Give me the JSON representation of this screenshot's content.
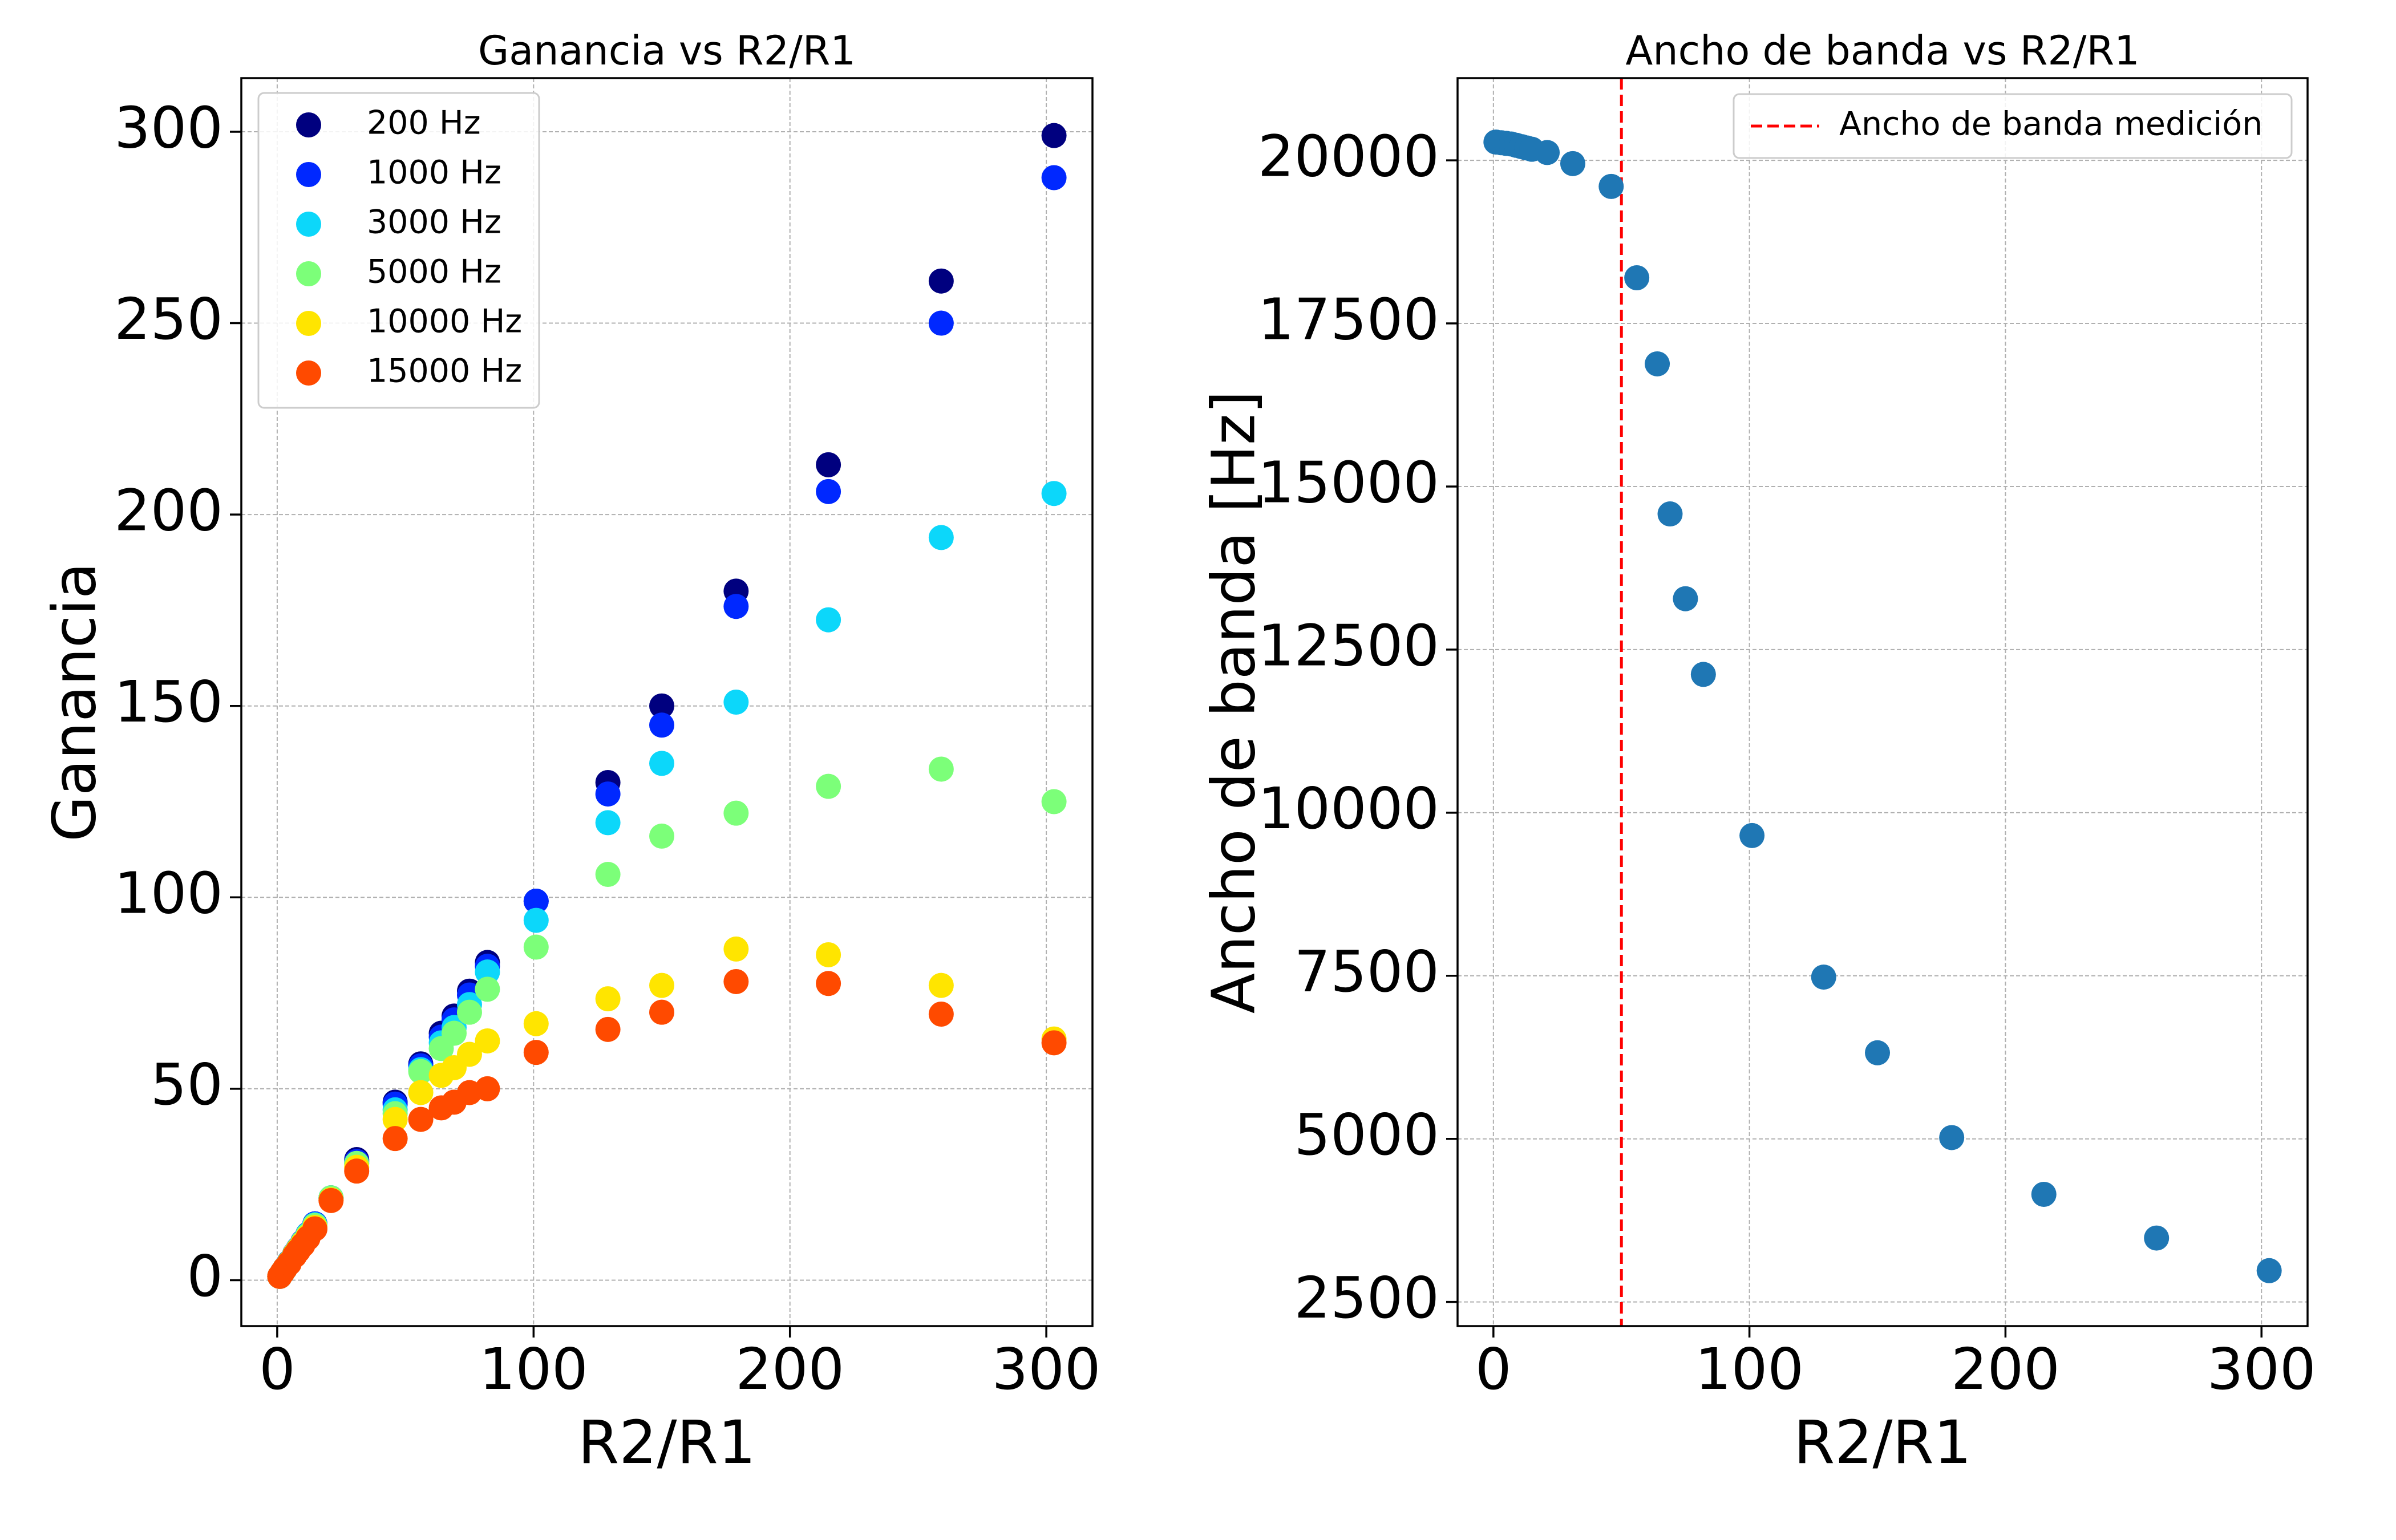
{
  "chart_data": [
    {
      "type": "scatter",
      "title": "Ganancia vs R2/R1",
      "xlabel": "R2/R1",
      "ylabel": "Ganancia",
      "xlim": [
        -14,
        318
      ],
      "ylim": [
        -12,
        314
      ],
      "xticks": [
        0,
        100,
        200,
        300
      ],
      "yticks": [
        0,
        50,
        100,
        150,
        200,
        250,
        300
      ],
      "xtick_labels": [
        "0",
        "100",
        "200",
        "300"
      ],
      "ytick_labels": [
        "0",
        "50",
        "100",
        "150",
        "200",
        "250",
        "300"
      ],
      "grid": true,
      "legend_position": "top-left",
      "x": [
        1,
        2,
        3,
        4.7,
        6.8,
        8.2,
        10,
        12,
        14.7,
        21,
        31,
        46,
        56,
        64,
        69,
        75,
        82,
        101,
        129,
        150,
        179,
        215,
        259,
        303
      ],
      "series": [
        {
          "name": "200 Hz",
          "color": "#00007f",
          "values": [
            1,
            2,
            3,
            4.7,
            6.8,
            8.2,
            10,
            12,
            14.7,
            21.5,
            31.5,
            46.5,
            56.5,
            64.5,
            69,
            75.5,
            83,
            99,
            130,
            150,
            180,
            213,
            261,
            299
          ]
        },
        {
          "name": "1000 Hz",
          "color": "#0028ff",
          "values": [
            1,
            2,
            3,
            4.7,
            6.8,
            8.2,
            10,
            12,
            14.7,
            21.5,
            31,
            46,
            56,
            63.5,
            68,
            74.5,
            82,
            99,
            127,
            145,
            176,
            206,
            250,
            288
          ]
        },
        {
          "name": "3000 Hz",
          "color": "#0cd7fa",
          "values": [
            1,
            2,
            3,
            4.6,
            6.7,
            8.1,
            9.9,
            11.9,
            14.5,
            21.5,
            30.5,
            44.5,
            55,
            62,
            66,
            72,
            80.5,
            94,
            119.5,
            135,
            151,
            172.5,
            194,
            205.5
          ]
        },
        {
          "name": "5000 Hz",
          "color": "#7cff79",
          "values": [
            1,
            2,
            3,
            4.6,
            6.7,
            8.1,
            9.8,
            11.7,
            14.3,
            21.5,
            30.5,
            43.5,
            54.5,
            60.5,
            64.5,
            70,
            76,
            87,
            106,
            116,
            122,
            129,
            133.5,
            125
          ]
        },
        {
          "name": "10000 Hz",
          "color": "#ffe500",
          "values": [
            1,
            2,
            3,
            4.5,
            6.6,
            7.9,
            9.5,
            11.3,
            13.8,
            21,
            29.5,
            42,
            49,
            53.5,
            55.5,
            59,
            62.5,
            67,
            73.5,
            77,
            86.5,
            85,
            77,
            63
          ]
        },
        {
          "name": "15000 Hz",
          "color": "#ff4a00",
          "values": [
            1,
            2,
            3,
            4.4,
            6.4,
            7.7,
            9.2,
            11,
            13.4,
            20.8,
            28.5,
            37,
            42,
            45,
            46.5,
            49,
            50,
            59.5,
            65.5,
            70,
            78,
            77.5,
            69.5,
            62
          ]
        }
      ]
    },
    {
      "type": "scatter",
      "title": "Ancho de banda vs R2/R1",
      "xlabel": "R2/R1",
      "ylabel": "Ancho de banda [Hz]",
      "xlim": [
        -14,
        318
      ],
      "ylim": [
        2130,
        21260
      ],
      "xticks": [
        0,
        100,
        200,
        300
      ],
      "yticks": [
        2500,
        5000,
        7500,
        10000,
        12500,
        15000,
        17500,
        20000
      ],
      "xtick_labels": [
        "0",
        "100",
        "200",
        "300"
      ],
      "ytick_labels": [
        "2500",
        "5000",
        "7500",
        "10000",
        "12500",
        "15000",
        "17500",
        "20000"
      ],
      "grid": true,
      "legend_position": "top-right",
      "reference_line": {
        "label": "Ancho de banda medición",
        "x": 50,
        "color": "#ff0000",
        "style": "dashed"
      },
      "series": [
        {
          "color": "#1f77b4",
          "x": [
            1,
            3,
            5,
            7,
            9,
            11,
            13,
            15,
            21,
            31,
            46,
            56,
            64,
            69,
            75,
            82,
            101,
            129,
            150,
            179,
            215,
            259,
            303
          ],
          "values": [
            20280,
            20270,
            20260,
            20250,
            20230,
            20210,
            20190,
            20170,
            20120,
            19950,
            19600,
            18200,
            16880,
            14580,
            13280,
            12120,
            9650,
            7480,
            6320,
            5020,
            4150,
            3480,
            2980
          ]
        }
      ]
    }
  ]
}
